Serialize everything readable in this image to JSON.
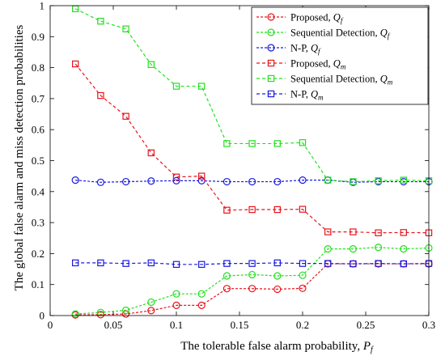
{
  "chart_data": {
    "type": "line",
    "xlabel": "The tolerable false alarm probability, ",
    "xlabel_symbol": "P",
    "xlabel_symbol_sub": "f",
    "ylabel": "The global false alarm and miss detection probabilities",
    "xlim": [
      0,
      0.3
    ],
    "ylim": [
      0,
      1
    ],
    "xticks": [
      0,
      0.05,
      0.1,
      0.15,
      0.2,
      0.25,
      0.3
    ],
    "xtick_labels": [
      "0",
      "0.05",
      "0.1",
      "0.15",
      "0.2",
      "0.25",
      "0.3"
    ],
    "yticks": [
      0,
      0.1,
      0.2,
      0.3,
      0.4,
      0.5,
      0.6,
      0.7,
      0.8,
      0.9,
      1
    ],
    "ytick_labels": [
      "0",
      "0.1",
      "0.2",
      "0.3",
      "0.4",
      "0.5",
      "0.6",
      "0.7",
      "0.8",
      "0.9",
      "1"
    ],
    "grid": false,
    "legend_position": "top-right",
    "x": [
      0.02,
      0.04,
      0.06,
      0.08,
      0.1,
      0.12,
      0.14,
      0.16,
      0.18,
      0.2,
      0.22,
      0.24,
      0.26,
      0.28,
      0.3
    ],
    "series": [
      {
        "name": "Proposed, ",
        "symbol": "Q",
        "symbol_sub": "f",
        "color": "#e8141c",
        "marker": "circle",
        "values": [
          0.002,
          0.003,
          0.005,
          0.016,
          0.033,
          0.033,
          0.087,
          0.087,
          0.085,
          0.088,
          0.167,
          0.167,
          0.167,
          0.167,
          0.167
        ]
      },
      {
        "name": "Sequential Detection, ",
        "symbol": "Q",
        "symbol_sub": "f",
        "color": "#22e01e",
        "marker": "circle",
        "values": [
          0.005,
          0.01,
          0.017,
          0.043,
          0.07,
          0.07,
          0.128,
          0.132,
          0.128,
          0.13,
          0.215,
          0.215,
          0.22,
          0.215,
          0.218
        ]
      },
      {
        "name": "N-P, ",
        "symbol": "Q",
        "symbol_sub": "f",
        "color": "#1a1ae0",
        "marker": "circle",
        "values": [
          0.437,
          0.43,
          0.432,
          0.434,
          0.435,
          0.435,
          0.432,
          0.432,
          0.432,
          0.437,
          0.437,
          0.43,
          0.432,
          0.432,
          0.432
        ]
      },
      {
        "name": "Proposed, ",
        "symbol": "Q",
        "symbol_sub": "m",
        "color": "#e8141c",
        "marker": "square",
        "values": [
          0.812,
          0.71,
          0.643,
          0.525,
          0.447,
          0.45,
          0.34,
          0.342,
          0.342,
          0.343,
          0.27,
          0.27,
          0.267,
          0.268,
          0.267
        ]
      },
      {
        "name": "Sequential Detection, ",
        "symbol": "Q",
        "symbol_sub": "m",
        "color": "#22e01e",
        "marker": "square",
        "values": [
          0.99,
          0.95,
          0.925,
          0.81,
          0.74,
          0.74,
          0.555,
          0.555,
          0.555,
          0.558,
          0.437,
          0.432,
          0.435,
          0.437,
          0.435
        ]
      },
      {
        "name": "N-P, ",
        "symbol": "Q",
        "symbol_sub": "m",
        "color": "#1a1ae0",
        "marker": "square",
        "values": [
          0.17,
          0.17,
          0.168,
          0.17,
          0.165,
          0.165,
          0.168,
          0.168,
          0.17,
          0.168,
          0.168,
          0.167,
          0.168,
          0.167,
          0.168
        ]
      }
    ]
  }
}
